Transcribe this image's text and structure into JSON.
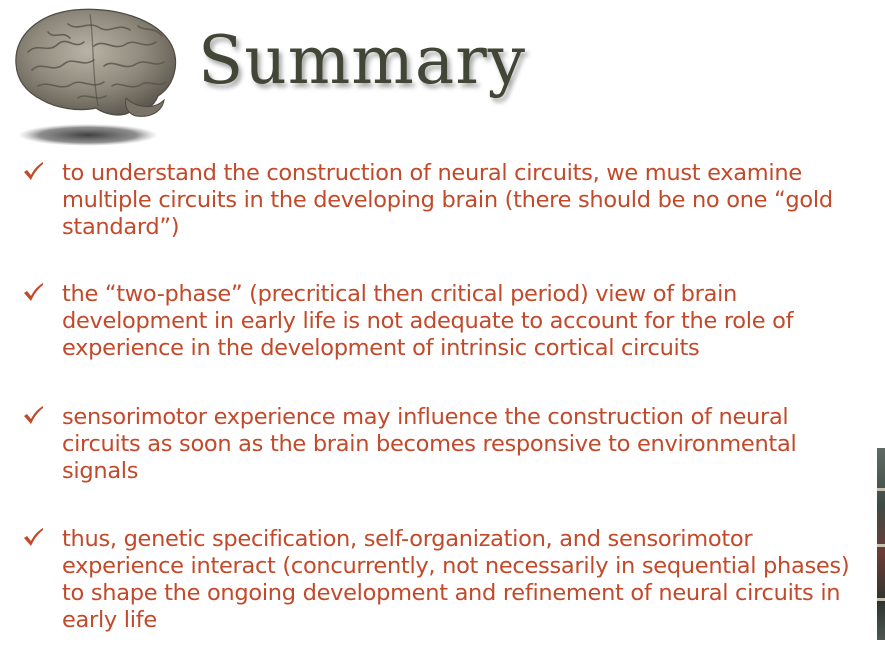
{
  "slide": {
    "title": "Summary",
    "icons": {
      "brain": "brain-icon",
      "bullet": "checkmark-icon"
    },
    "colors": {
      "title": "#414636",
      "bullet_text": "#c24a2a",
      "checkmark": "#c24a2a",
      "background": "#ffffff"
    },
    "bullets": [
      "to understand the construction of neural circuits, we must examine multiple circuits in the developing brain (there should be no one “gold standard”)",
      "the “two-phase” (precritical then critical period) view of brain development in early life is not adequate to account for the role of experience in the development of intrinsic cortical circuits",
      "sensorimotor experience may influence the construction of neural circuits as soon as the brain becomes responsive to environmental signals",
      "thus, genetic specification, self-organization, and sensorimotor experience interact (concurrently, not necessarily in sequential phases) to shape the ongoing development and refinement of neural circuits in early life"
    ]
  }
}
